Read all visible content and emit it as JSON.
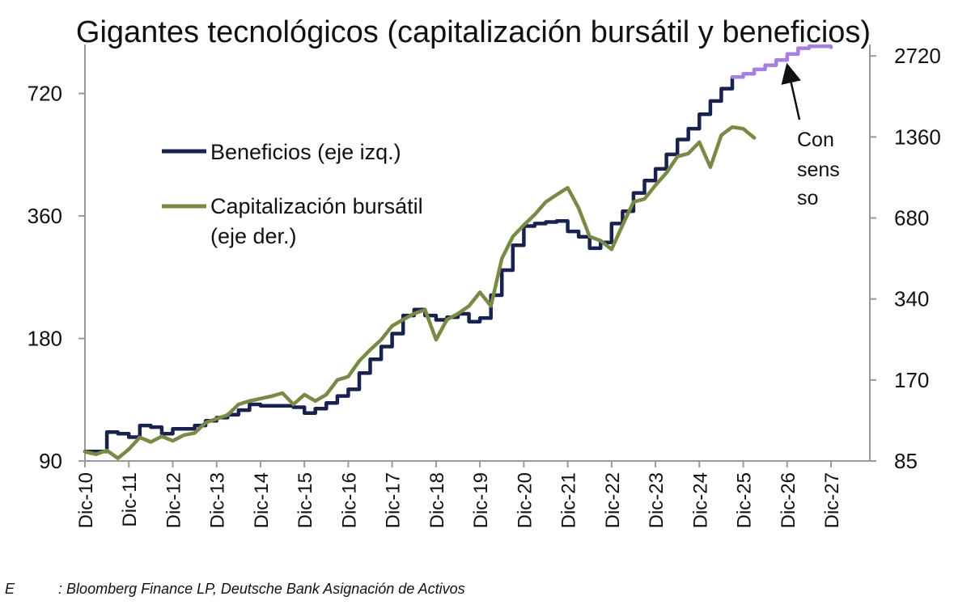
{
  "chart_data": {
    "type": "line",
    "title": "Gigantes tecnológicos (capitalización bursátil y beneficios)",
    "y_left": {
      "scale": "log",
      "ticks": [
        90,
        180,
        360,
        720
      ],
      "range": [
        90,
        950
      ]
    },
    "y_right": {
      "scale": "log",
      "ticks": [
        85,
        170,
        340,
        680,
        1360,
        2720
      ],
      "range": [
        85,
        3000
      ]
    },
    "x_ticks": [
      "Dic-10",
      "Dic-11",
      "Dic-12",
      "Dic-13",
      "Dic-14",
      "Dic-15",
      "Dic-16",
      "Dic-17",
      "Dic-18",
      "Dic-19",
      "Dic-20",
      "Dic-21",
      "Dic-22",
      "Dic-23",
      "Dic-24",
      "Dic-25",
      "Dic-26",
      "Dic-27"
    ],
    "series": [
      {
        "name": "Beneficios (eje izq.)",
        "axis": "left",
        "color": "#18224f",
        "style": "step",
        "points": [
          [
            "Dic-10",
            95
          ],
          [
            "Jun-11",
            106
          ],
          [
            "Sep-11",
            105
          ],
          [
            "Dic-11",
            103
          ],
          [
            "Mar-12",
            110
          ],
          [
            "Jun-12",
            109
          ],
          [
            "Sep-12",
            105
          ],
          [
            "Dic-12",
            108
          ],
          [
            "Mar-13",
            108
          ],
          [
            "Jun-13",
            110
          ],
          [
            "Sep-13",
            113
          ],
          [
            "Dic-13",
            115
          ],
          [
            "Mar-14",
            117
          ],
          [
            "Jun-14",
            120
          ],
          [
            "Sep-14",
            124
          ],
          [
            "Dic-14",
            123
          ],
          [
            "Mar-15",
            123
          ],
          [
            "Jun-15",
            123
          ],
          [
            "Sep-15",
            122
          ],
          [
            "Dic-15",
            118
          ],
          [
            "Mar-16",
            121
          ],
          [
            "Jun-16",
            125
          ],
          [
            "Sep-16",
            130
          ],
          [
            "Dic-16",
            135
          ],
          [
            "Mar-17",
            148
          ],
          [
            "Jun-17",
            160
          ],
          [
            "Sep-17",
            172
          ],
          [
            "Dic-17",
            185
          ],
          [
            "Mar-18",
            205
          ],
          [
            "Jun-18",
            212
          ],
          [
            "Sep-18",
            205
          ],
          [
            "Dic-18",
            200
          ],
          [
            "Mar-19",
            203
          ],
          [
            "Jun-19",
            207
          ],
          [
            "Sep-19",
            198
          ],
          [
            "Dic-19",
            202
          ],
          [
            "Mar-20",
            230
          ],
          [
            "Jun-20",
            265
          ],
          [
            "Sep-20",
            305
          ],
          [
            "Dic-20",
            340
          ],
          [
            "Mar-21",
            345
          ],
          [
            "Jun-21",
            348
          ],
          [
            "Sep-21",
            350
          ],
          [
            "Dic-21",
            330
          ],
          [
            "Mar-22",
            320
          ],
          [
            "Jun-22",
            300
          ],
          [
            "Sep-22",
            310
          ],
          [
            "Dic-22",
            345
          ],
          [
            "Mar-23",
            370
          ],
          [
            "Jun-23",
            410
          ],
          [
            "Sep-23",
            440
          ],
          [
            "Dic-23",
            470
          ],
          [
            "Mar-24",
            510
          ],
          [
            "Jun-24",
            555
          ],
          [
            "Sep-24",
            590
          ],
          [
            "Dic-24",
            640
          ],
          [
            "Mar-25",
            690
          ],
          [
            "Jun-25",
            740
          ],
          [
            "Sep-25",
            790
          ]
        ]
      },
      {
        "name": "Consenso (beneficios)",
        "axis": "left",
        "color": "#a77fe3",
        "style": "step",
        "points": [
          [
            "Sep-25",
            790
          ],
          [
            "Dic-25",
            805
          ],
          [
            "Mar-26",
            825
          ],
          [
            "Jun-26",
            845
          ],
          [
            "Sep-26",
            870
          ],
          [
            "Dic-26",
            900
          ],
          [
            "Mar-27",
            930
          ],
          [
            "Jun-27",
            940
          ],
          [
            "Sep-27",
            940
          ],
          [
            "Dic-27",
            935
          ]
        ]
      },
      {
        "name": "Capitalización bursátil (eje der.)",
        "axis": "right",
        "color": "#7a8a46",
        "style": "line",
        "points": [
          [
            "Dic-10",
            92
          ],
          [
            "Mar-11",
            90
          ],
          [
            "Jun-11",
            93
          ],
          [
            "Sep-11",
            87
          ],
          [
            "Dic-11",
            94
          ],
          [
            "Mar-12",
            104
          ],
          [
            "Jun-12",
            100
          ],
          [
            "Sep-12",
            105
          ],
          [
            "Dic-12",
            101
          ],
          [
            "Mar-13",
            106
          ],
          [
            "Jun-13",
            108
          ],
          [
            "Sep-13",
            118
          ],
          [
            "Dic-13",
            122
          ],
          [
            "Mar-14",
            126
          ],
          [
            "Jun-14",
            138
          ],
          [
            "Sep-14",
            142
          ],
          [
            "Dic-14",
            145
          ],
          [
            "Mar-15",
            148
          ],
          [
            "Jun-15",
            152
          ],
          [
            "Sep-15",
            138
          ],
          [
            "Dic-15",
            150
          ],
          [
            "Mar-16",
            142
          ],
          [
            "Jun-16",
            150
          ],
          [
            "Sep-16",
            170
          ],
          [
            "Dic-16",
            175
          ],
          [
            "Mar-17",
            200
          ],
          [
            "Jun-17",
            220
          ],
          [
            "Sep-17",
            240
          ],
          [
            "Dic-17",
            270
          ],
          [
            "Mar-18",
            285
          ],
          [
            "Jun-18",
            300
          ],
          [
            "Sep-18",
            310
          ],
          [
            "Dic-18",
            240
          ],
          [
            "Mar-19",
            285
          ],
          [
            "Jun-19",
            300
          ],
          [
            "Sep-19",
            320
          ],
          [
            "Dic-19",
            360
          ],
          [
            "Mar-20",
            320
          ],
          [
            "Jun-20",
            480
          ],
          [
            "Sep-20",
            580
          ],
          [
            "Dic-20",
            640
          ],
          [
            "Mar-21",
            700
          ],
          [
            "Jun-21",
            780
          ],
          [
            "Sep-21",
            830
          ],
          [
            "Dic-21",
            880
          ],
          [
            "Mar-22",
            740
          ],
          [
            "Jun-22",
            580
          ],
          [
            "Sep-22",
            560
          ],
          [
            "Dic-22",
            520
          ],
          [
            "Mar-23",
            640
          ],
          [
            "Jun-23",
            780
          ],
          [
            "Sep-23",
            800
          ],
          [
            "Dic-23",
            900
          ],
          [
            "Mar-24",
            1000
          ],
          [
            "Jun-24",
            1150
          ],
          [
            "Sep-24",
            1180
          ],
          [
            "Dic-24",
            1300
          ],
          [
            "Mar-25",
            1050
          ],
          [
            "Jun-25",
            1380
          ],
          [
            "Sep-25",
            1480
          ],
          [
            "Dic-25",
            1460
          ],
          [
            "Mar-26",
            1350
          ]
        ]
      }
    ],
    "legend": [
      {
        "label": "Beneficios (eje izq.)",
        "color": "#18224f"
      },
      {
        "label_line1": "Capitalización bursátil",
        "label_line2": "(eje der.)",
        "color": "#7a8a46"
      }
    ],
    "annotation": {
      "lines": [
        "Con",
        "sens",
        "so"
      ]
    }
  },
  "source": {
    "prefix": "E",
    "text": ": Bloomberg Finance LP, Deutsche Bank Asignación de Activos"
  }
}
